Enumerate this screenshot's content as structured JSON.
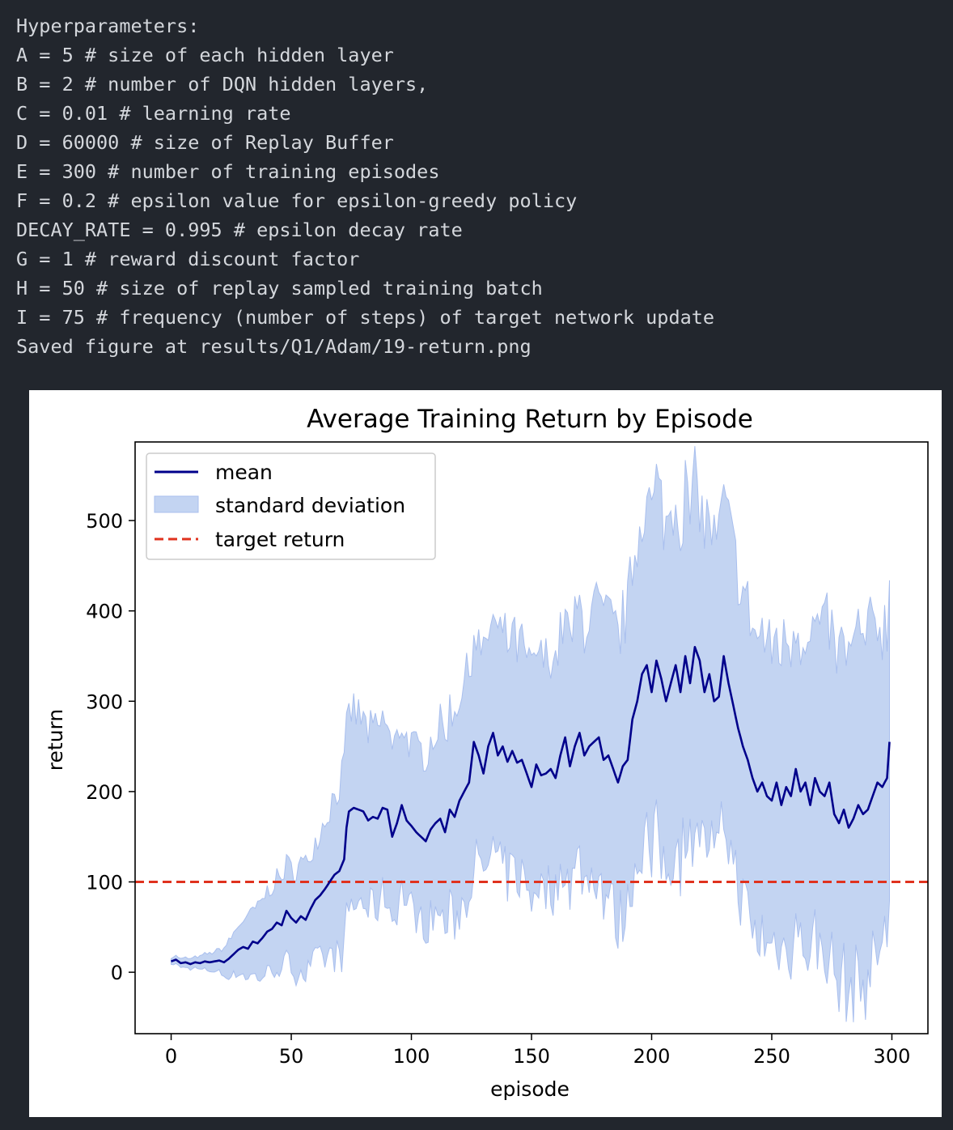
{
  "console": {
    "lines": [
      "Hyperparameters:",
      "A = 5 # size of each hidden layer",
      "B = 2 # number of DQN hidden layers,",
      "C = 0.01 # learning rate",
      "D = 60000 # size of Replay Buffer",
      "E = 300 # number of training episodes",
      "F = 0.2 # epsilon value for epsilon-greedy policy",
      "DECAY_RATE = 0.995 # epsilon decay rate",
      "G = 1 # reward discount factor",
      "H = 50 # size of replay sampled training batch",
      "I = 75 # frequency (number of steps) of target network update",
      "Saved figure at results/Q1/Adam/19-return.png"
    ]
  },
  "chart_data": {
    "type": "line",
    "title": "Average Training Return by Episode",
    "xlabel": "episode",
    "ylabel": "return",
    "xlim": [
      -15,
      315
    ],
    "ylim": [
      -68,
      587
    ],
    "xticks": [
      0,
      50,
      100,
      150,
      200,
      250,
      300
    ],
    "yticks": [
      0,
      100,
      200,
      300,
      400,
      500
    ],
    "legend_position": "upper-left",
    "legend": [
      "mean",
      "standard deviation",
      "target return"
    ],
    "colors": {
      "mean": "#00008b",
      "band": "#c3d4f2",
      "band_edge": "#a9bfee",
      "target": "#e0321e"
    },
    "target_return": 100,
    "mean_anchors": [
      [
        0,
        12
      ],
      [
        2,
        14
      ],
      [
        4,
        10
      ],
      [
        6,
        11
      ],
      [
        8,
        9
      ],
      [
        10,
        11
      ],
      [
        12,
        10
      ],
      [
        14,
        12
      ],
      [
        16,
        11
      ],
      [
        18,
        12
      ],
      [
        20,
        13
      ],
      [
        22,
        11
      ],
      [
        24,
        15
      ],
      [
        26,
        20
      ],
      [
        28,
        25
      ],
      [
        30,
        28
      ],
      [
        32,
        26
      ],
      [
        34,
        34
      ],
      [
        36,
        32
      ],
      [
        38,
        38
      ],
      [
        40,
        45
      ],
      [
        42,
        48
      ],
      [
        44,
        55
      ],
      [
        46,
        52
      ],
      [
        48,
        68
      ],
      [
        50,
        60
      ],
      [
        52,
        55
      ],
      [
        54,
        62
      ],
      [
        56,
        58
      ],
      [
        58,
        70
      ],
      [
        60,
        80
      ],
      [
        62,
        85
      ],
      [
        64,
        92
      ],
      [
        66,
        100
      ],
      [
        68,
        108
      ],
      [
        70,
        112
      ],
      [
        72,
        125
      ],
      [
        73,
        160
      ],
      [
        74,
        178
      ],
      [
        76,
        182
      ],
      [
        78,
        180
      ],
      [
        80,
        178
      ],
      [
        82,
        168
      ],
      [
        84,
        172
      ],
      [
        86,
        170
      ],
      [
        88,
        182
      ],
      [
        90,
        180
      ],
      [
        92,
        150
      ],
      [
        94,
        165
      ],
      [
        96,
        185
      ],
      [
        98,
        168
      ],
      [
        100,
        162
      ],
      [
        102,
        155
      ],
      [
        104,
        150
      ],
      [
        106,
        145
      ],
      [
        108,
        158
      ],
      [
        110,
        165
      ],
      [
        112,
        170
      ],
      [
        114,
        155
      ],
      [
        116,
        180
      ],
      [
        118,
        172
      ],
      [
        120,
        190
      ],
      [
        122,
        200
      ],
      [
        124,
        210
      ],
      [
        126,
        255
      ],
      [
        128,
        240
      ],
      [
        130,
        220
      ],
      [
        132,
        250
      ],
      [
        134,
        265
      ],
      [
        136,
        240
      ],
      [
        138,
        250
      ],
      [
        140,
        233
      ],
      [
        142,
        245
      ],
      [
        144,
        232
      ],
      [
        146,
        235
      ],
      [
        148,
        220
      ],
      [
        150,
        205
      ],
      [
        152,
        230
      ],
      [
        154,
        218
      ],
      [
        156,
        220
      ],
      [
        158,
        225
      ],
      [
        160,
        215
      ],
      [
        162,
        240
      ],
      [
        164,
        260
      ],
      [
        166,
        228
      ],
      [
        168,
        250
      ],
      [
        170,
        265
      ],
      [
        172,
        240
      ],
      [
        174,
        250
      ],
      [
        176,
        255
      ],
      [
        178,
        260
      ],
      [
        180,
        235
      ],
      [
        182,
        240
      ],
      [
        184,
        225
      ],
      [
        186,
        210
      ],
      [
        188,
        228
      ],
      [
        190,
        235
      ],
      [
        192,
        280
      ],
      [
        194,
        300
      ],
      [
        196,
        330
      ],
      [
        198,
        340
      ],
      [
        200,
        310
      ],
      [
        202,
        345
      ],
      [
        204,
        325
      ],
      [
        206,
        300
      ],
      [
        208,
        320
      ],
      [
        210,
        340
      ],
      [
        212,
        310
      ],
      [
        214,
        350
      ],
      [
        216,
        320
      ],
      [
        218,
        360
      ],
      [
        220,
        345
      ],
      [
        222,
        310
      ],
      [
        224,
        330
      ],
      [
        226,
        300
      ],
      [
        228,
        305
      ],
      [
        230,
        350
      ],
      [
        232,
        320
      ],
      [
        234,
        295
      ],
      [
        236,
        270
      ],
      [
        238,
        250
      ],
      [
        240,
        235
      ],
      [
        242,
        215
      ],
      [
        244,
        200
      ],
      [
        246,
        210
      ],
      [
        248,
        195
      ],
      [
        250,
        190
      ],
      [
        252,
        210
      ],
      [
        254,
        185
      ],
      [
        256,
        205
      ],
      [
        258,
        195
      ],
      [
        260,
        225
      ],
      [
        262,
        200
      ],
      [
        264,
        210
      ],
      [
        266,
        185
      ],
      [
        268,
        215
      ],
      [
        270,
        200
      ],
      [
        272,
        195
      ],
      [
        274,
        210
      ],
      [
        276,
        175
      ],
      [
        278,
        165
      ],
      [
        280,
        180
      ],
      [
        282,
        160
      ],
      [
        284,
        170
      ],
      [
        286,
        185
      ],
      [
        288,
        175
      ],
      [
        290,
        180
      ],
      [
        292,
        195
      ],
      [
        294,
        210
      ],
      [
        296,
        205
      ],
      [
        298,
        215
      ],
      [
        299,
        255
      ]
    ],
    "std_anchors": [
      [
        0,
        4
      ],
      [
        10,
        6
      ],
      [
        20,
        12
      ],
      [
        30,
        30
      ],
      [
        40,
        45
      ],
      [
        50,
        55
      ],
      [
        60,
        65
      ],
      [
        70,
        95
      ],
      [
        75,
        110
      ],
      [
        80,
        100
      ],
      [
        90,
        95
      ],
      [
        100,
        90
      ],
      [
        110,
        100
      ],
      [
        120,
        120
      ],
      [
        130,
        125
      ],
      [
        140,
        130
      ],
      [
        150,
        125
      ],
      [
        160,
        130
      ],
      [
        170,
        140
      ],
      [
        180,
        150
      ],
      [
        190,
        165
      ],
      [
        200,
        195
      ],
      [
        210,
        190
      ],
      [
        220,
        180
      ],
      [
        230,
        175
      ],
      [
        240,
        170
      ],
      [
        250,
        165
      ],
      [
        260,
        170
      ],
      [
        270,
        175
      ],
      [
        280,
        185
      ],
      [
        290,
        190
      ],
      [
        299,
        170
      ]
    ]
  }
}
